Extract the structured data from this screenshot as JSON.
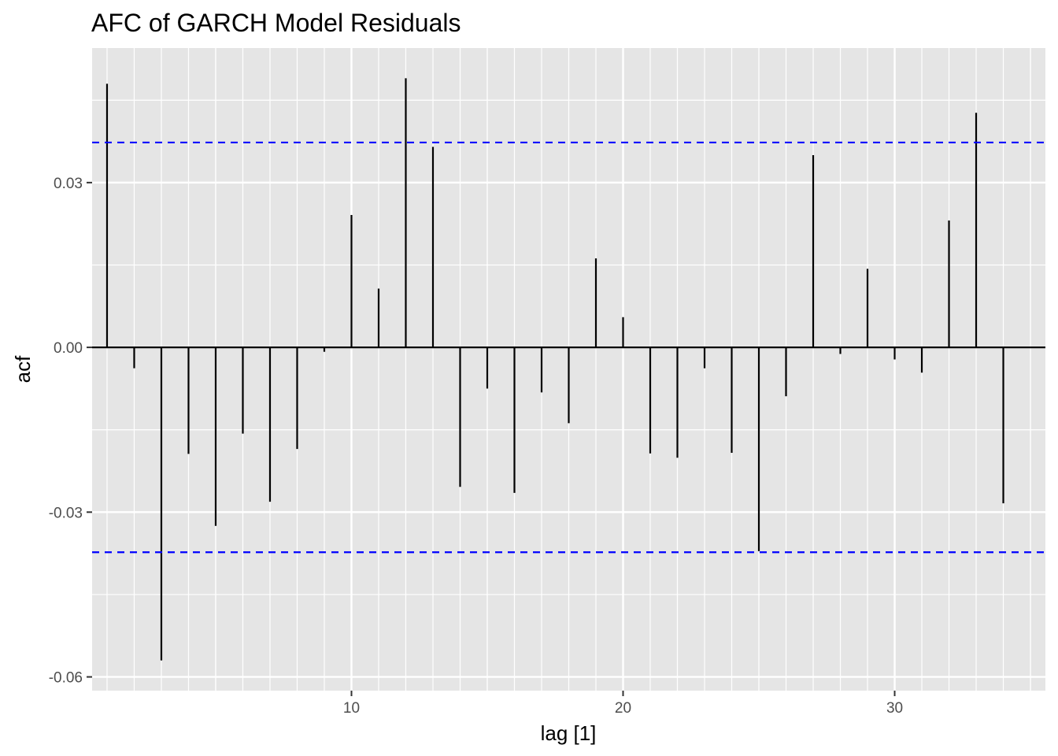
{
  "chart_data": {
    "type": "bar",
    "title": "AFC of GARCH Model Residuals",
    "xlabel": "lag [1]",
    "ylabel": "acf",
    "x": [
      1,
      2,
      3,
      4,
      5,
      6,
      7,
      8,
      9,
      10,
      11,
      12,
      13,
      14,
      15,
      16,
      17,
      18,
      19,
      20,
      21,
      22,
      23,
      24,
      25,
      26,
      27,
      28,
      29,
      30,
      31,
      32,
      33,
      34
    ],
    "values": [
      0.048,
      -0.0038,
      -0.057,
      -0.0194,
      -0.0325,
      -0.0157,
      -0.0281,
      -0.0185,
      -0.0008,
      0.0241,
      0.0107,
      0.049,
      0.0365,
      -0.0254,
      -0.0075,
      -0.0265,
      -0.0082,
      -0.0138,
      0.0162,
      0.0055,
      -0.0193,
      -0.0201,
      -0.0038,
      -0.0192,
      -0.0371,
      -0.0089,
      0.035,
      -0.0012,
      0.0143,
      -0.0022,
      -0.0046,
      0.0231,
      0.0427,
      -0.0284
    ],
    "confidence_band": 0.0373,
    "xlim": [
      0.45,
      35.55
    ],
    "ylim": [
      -0.0625,
      0.0545
    ],
    "xticks": [
      10,
      20,
      30
    ],
    "xtick_labels": [
      "10",
      "20",
      "30"
    ],
    "yticks": [
      -0.06,
      -0.03,
      0.0,
      0.03
    ],
    "ytick_labels": [
      "-0.06",
      "-0.03",
      "0.00",
      "0.03"
    ],
    "x_minor_ticks": [
      5,
      15,
      25,
      35
    ],
    "y_minor_ticks": [
      -0.045,
      -0.015,
      0.015,
      0.045
    ],
    "grid": true,
    "colors": {
      "panel": "#e5e5e5",
      "grid": "#ffffff",
      "bar": "#000000",
      "band": "#0000ff"
    }
  }
}
